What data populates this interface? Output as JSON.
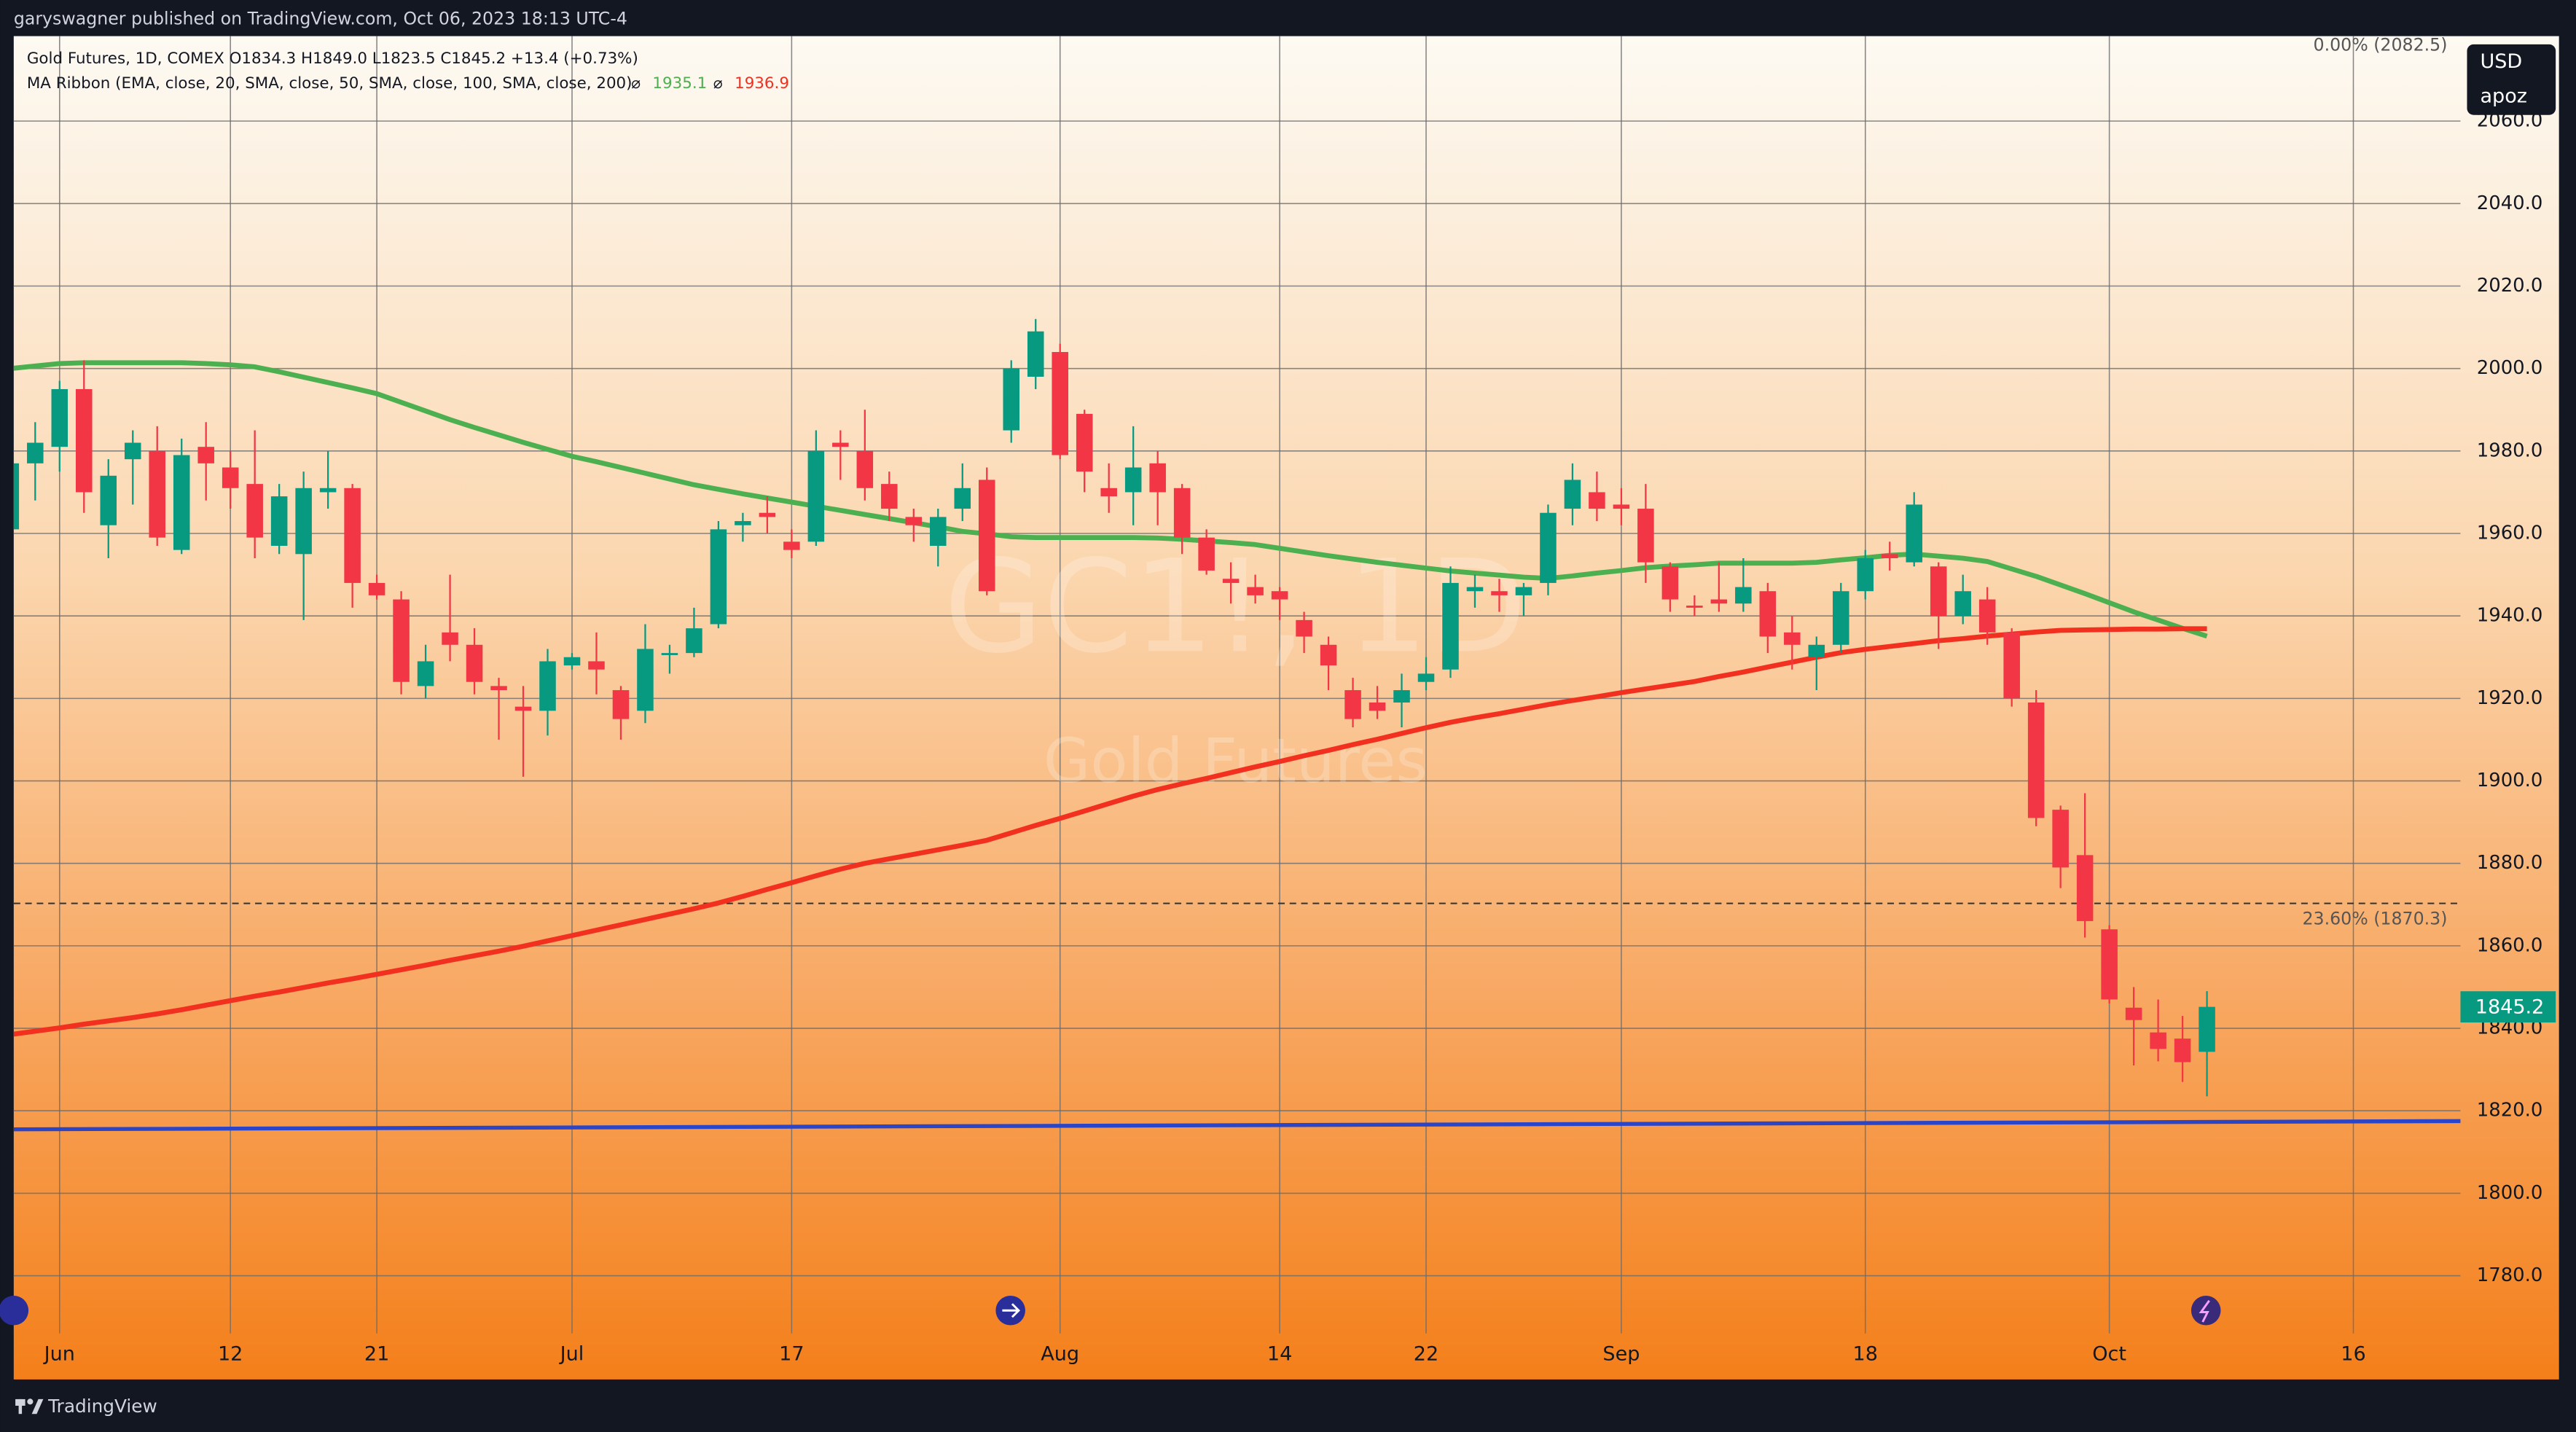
{
  "header": "garyswagner published on TradingView.com, Oct 06, 2023 18:13 UTC-4",
  "footer": "TradingView",
  "chart_data": {
    "type": "candlestick",
    "legend_title": "Gold Futures, 1D, COMEX  O1834.3  H1849.0  L1823.5  C1845.2  +13.4 (+0.73%)",
    "ma_title": "MA Ribbon (EMA, close, 20, SMA, close, 50, SMA, close, 100, SMA, close, 200)",
    "ma_symbol": "⌀",
    "watermark": {
      "symbol": "GC1!, 1D",
      "name": "Gold Futures"
    },
    "currency": "USD",
    "unit_label": "apoz",
    "up_color": "#089981",
    "down_color": "#f23645",
    "categories": [
      null,
      null,
      "Jun",
      null,
      null,
      null,
      null,
      null,
      null,
      "12",
      null,
      null,
      null,
      null,
      null,
      "21",
      null,
      null,
      null,
      null,
      null,
      null,
      null,
      "Jul",
      null,
      null,
      null,
      null,
      null,
      null,
      null,
      null,
      "17",
      null,
      null,
      null,
      null,
      null,
      null,
      null,
      null,
      null,
      null,
      "Aug",
      null,
      null,
      null,
      null,
      null,
      null,
      null,
      null,
      "14",
      null,
      null,
      null,
      null,
      null,
      "22",
      null,
      null,
      null,
      null,
      null,
      null,
      null,
      "Sep",
      null,
      null,
      null,
      null,
      null,
      null,
      null,
      null,
      null,
      "18",
      null,
      null,
      null,
      null,
      null,
      null,
      null,
      null,
      null,
      "Oct",
      null,
      null,
      null,
      null,
      null,
      null,
      null,
      null,
      null,
      "16",
      null,
      null,
      null,
      null
    ],
    "open": [
      1961,
      1977,
      1981,
      1995,
      1962,
      1978,
      1980,
      1956,
      1981,
      1976,
      1972,
      1957,
      1955,
      1970,
      1971,
      1948,
      1944,
      1923,
      1936,
      1933,
      1923,
      1918,
      1917,
      1928,
      1929,
      1922,
      1917,
      1930.5,
      1931,
      1938,
      1962,
      1965,
      1958,
      1958,
      1982,
      1980,
      1972,
      1964,
      1957,
      1966,
      1973,
      1985,
      1998,
      2004,
      1989,
      1971,
      1970,
      1977,
      1971,
      1959,
      1949,
      1947,
      1946,
      1939,
      1933,
      1922,
      1919,
      1919,
      1924,
      1927,
      1946,
      1946,
      1945,
      1948,
      1966,
      1970,
      1967,
      1966,
      1952,
      1942.5,
      1944,
      1943,
      1946,
      1936,
      1930,
      1933,
      1946,
      1955,
      1953,
      1952,
      1940,
      1944,
      1936,
      1919,
      1893,
      1882,
      1864,
      1845,
      1839,
      1837.5,
      1834.3,
      null,
      null,
      null,
      null,
      null,
      null,
      null,
      null,
      null,
      null
    ],
    "high": [
      1979,
      1987,
      1997,
      2002,
      1978,
      1985,
      1986,
      1983,
      1987,
      1980,
      1985,
      1972,
      1975,
      1980,
      1972,
      1950,
      1946,
      1933,
      1950,
      1937,
      1925,
      1923,
      1932,
      1931,
      1936,
      1923,
      1938,
      1933,
      1942,
      1963,
      1965,
      1969,
      1961,
      1985,
      1985,
      1990,
      1975,
      1966,
      1966,
      1977,
      1976,
      2002,
      2012,
      2006,
      1990,
      1977,
      1986,
      1980,
      1972,
      1961,
      1953,
      1950,
      1947,
      1941,
      1935,
      1925,
      1923,
      1926,
      1930,
      1952,
      1950,
      1949,
      1948,
      1967,
      1977,
      1975,
      1971,
      1972,
      1953,
      1945,
      1953,
      1954,
      1948,
      1940,
      1935,
      1948,
      1956,
      1958,
      1970,
      1953,
      1950,
      1947,
      1937,
      1922,
      1894,
      1897,
      1865,
      1850,
      1847,
      1843,
      1849.0,
      null,
      null,
      null,
      null,
      null,
      null,
      null,
      null,
      null,
      null
    ],
    "low": [
      1959,
      1968,
      1975,
      1965,
      1954,
      1967,
      1957,
      1955,
      1968,
      1966,
      1954,
      1955,
      1939,
      1966,
      1942,
      1944,
      1921,
      1920,
      1929,
      1921,
      1910,
      1901,
      1911,
      1927,
      1921,
      1910,
      1914,
      1926,
      1930,
      1937,
      1958,
      1960,
      1954,
      1957,
      1973,
      1968,
      1963,
      1958,
      1952,
      1963,
      1945,
      1982,
      1995,
      1978,
      1970,
      1965,
      1962,
      1962,
      1955,
      1950,
      1943,
      1943,
      1939,
      1931,
      1922,
      1913,
      1915,
      1913,
      1922,
      1925,
      1942,
      1941,
      1940,
      1945,
      1962,
      1963,
      1962,
      1948,
      1941,
      1940,
      1941,
      1941,
      1931,
      1927,
      1922,
      1931,
      1944,
      1951,
      1952,
      1932,
      1938,
      1933,
      1918,
      1889,
      1874,
      1862,
      1846,
      1831,
      1832,
      1827,
      1823.5,
      null,
      null,
      null,
      null,
      null,
      null,
      null,
      null,
      null,
      null
    ],
    "close": [
      1977,
      1982,
      1995,
      1970,
      1974,
      1982,
      1959,
      1979,
      1977,
      1971,
      1959,
      1969,
      1971,
      1971,
      1948,
      1945,
      1924,
      1929,
      1933,
      1924,
      1922,
      1917,
      1929,
      1930,
      1927,
      1915,
      1932,
      1931,
      1937,
      1961,
      1963,
      1964,
      1956,
      1980,
      1981,
      1971,
      1966,
      1962,
      1964,
      1971,
      1946,
      2000,
      2009,
      1979,
      1975,
      1969,
      1976,
      1970,
      1959,
      1951,
      1948,
      1945,
      1944,
      1935,
      1928,
      1915,
      1917,
      1922,
      1926,
      1948,
      1947,
      1945,
      1947,
      1965,
      1973,
      1966,
      1966,
      1953,
      1944,
      1942,
      1943,
      1947,
      1935,
      1933,
      1933,
      1946,
      1954,
      1954,
      1967,
      1940,
      1946,
      1936,
      1920,
      1891,
      1879,
      1866,
      1847,
      1842,
      1835,
      1831.8,
      1845.2,
      null,
      null,
      null,
      null,
      null,
      null,
      null,
      null,
      null,
      null
    ],
    "ma_lines": [
      {
        "color": "#4caf50",
        "values": [
          2000.0,
          2000.6,
          2001.2,
          2001.4,
          2001.4,
          2001.4,
          2001.4,
          2001.4,
          2001.2,
          2000.9,
          2000.4,
          1999.2,
          1997.9,
          1996.6,
          1995.3,
          1993.9,
          1991.8,
          1989.7,
          1987.6,
          1985.7,
          1983.9,
          1982.1,
          1980.4,
          1978.7,
          1977.4,
          1976.0,
          1974.6,
          1973.2,
          1971.8,
          1970.7,
          1969.6,
          1968.6,
          1967.6,
          1966.6,
          1965.6,
          1964.6,
          1963.6,
          1962.6,
          1961.6,
          1960.5,
          1959.9,
          1959.2,
          1959.0,
          1959.0,
          1959.0,
          1959.0,
          1959.0,
          1958.9,
          1958.6,
          1958.2,
          1957.8,
          1957.3,
          1956.4,
          1955.5,
          1954.6,
          1953.8,
          1953.0,
          1952.3,
          1951.6,
          1950.9,
          1950.4,
          1949.9,
          1949.4,
          1949.1,
          1949.7,
          1950.4,
          1951.0,
          1951.7,
          1952.1,
          1952.4,
          1952.8,
          1952.8,
          1952.8,
          1952.8,
          1953.0,
          1953.6,
          1954.1,
          1954.7,
          1955.0,
          1954.5,
          1954.0,
          1953.2,
          1951.4,
          1949.6,
          1947.5,
          1945.4,
          1943.2,
          1941.0,
          1939.0,
          1937.0,
          1935.1,
          null,
          null,
          null,
          null,
          null,
          null,
          null,
          null,
          null,
          null
        ]
      },
      {
        "color": "#f23020",
        "values": [
          1838.5,
          1839.3,
          1840.1,
          1841.0,
          1841.8,
          1842.6,
          1843.5,
          1844.5,
          1845.6,
          1846.7,
          1847.8,
          1848.8,
          1849.9,
          1851.0,
          1852.0,
          1853.1,
          1854.2,
          1855.3,
          1856.5,
          1857.6,
          1858.7,
          1859.9,
          1861.2,
          1862.5,
          1863.8,
          1865.1,
          1866.4,
          1867.7,
          1869.0,
          1870.4,
          1872.0,
          1873.7,
          1875.3,
          1877.0,
          1878.6,
          1880.0,
          1881.1,
          1882.2,
          1883.3,
          1884.4,
          1885.6,
          1887.4,
          1889.2,
          1890.9,
          1892.7,
          1894.5,
          1896.3,
          1897.9,
          1899.3,
          1900.6,
          1902.0,
          1903.4,
          1904.7,
          1906.1,
          1907.4,
          1908.8,
          1910.1,
          1911.5,
          1912.9,
          1914.2,
          1915.3,
          1916.3,
          1917.4,
          1918.5,
          1919.5,
          1920.4,
          1921.4,
          1922.3,
          1923.2,
          1924.1,
          1925.3,
          1926.4,
          1927.6,
          1928.8,
          1930.0,
          1931.1,
          1931.9,
          1932.6,
          1933.3,
          1934.0,
          1934.5,
          1935.1,
          1935.6,
          1936.1,
          1936.5,
          1936.6,
          1936.7,
          1936.8,
          1936.8,
          1936.9,
          1936.9,
          null,
          null,
          null,
          null,
          null,
          null,
          null,
          null,
          null,
          null
        ]
      }
    ],
    "trend_line": {
      "start": 1815.5,
      "end": 1817.5,
      "color": "#2a45c8"
    },
    "fib_levels": [
      {
        "value": 2082.5,
        "label": "0.00% (2082.5)"
      },
      {
        "value": 1870.3,
        "label": "23.60% (1870.3)"
      }
    ],
    "ylim": [
      1766,
      2080.6
    ],
    "yticks": [
      {
        "value": 1780,
        "label": "1780.0"
      },
      {
        "value": 1800,
        "label": "1800.0"
      },
      {
        "value": 1820,
        "label": "1820.0"
      },
      {
        "value": 1840,
        "label": "1840.0"
      },
      {
        "value": 1860,
        "label": "1860.0"
      },
      {
        "value": 1880,
        "label": "1880.0"
      },
      {
        "value": 1900,
        "label": "1900.0"
      },
      {
        "value": 1920,
        "label": "1920.0"
      },
      {
        "value": 1940,
        "label": "1940.0"
      },
      {
        "value": 1960,
        "label": "1960.0"
      },
      {
        "value": 1980,
        "label": "1980.0"
      },
      {
        "value": 2000,
        "label": "2000.0"
      },
      {
        "value": 2020,
        "label": "2020.0"
      },
      {
        "value": 2040,
        "label": "2040.0"
      },
      {
        "value": 2060,
        "label": "2060.0"
      }
    ],
    "grid": true
  }
}
